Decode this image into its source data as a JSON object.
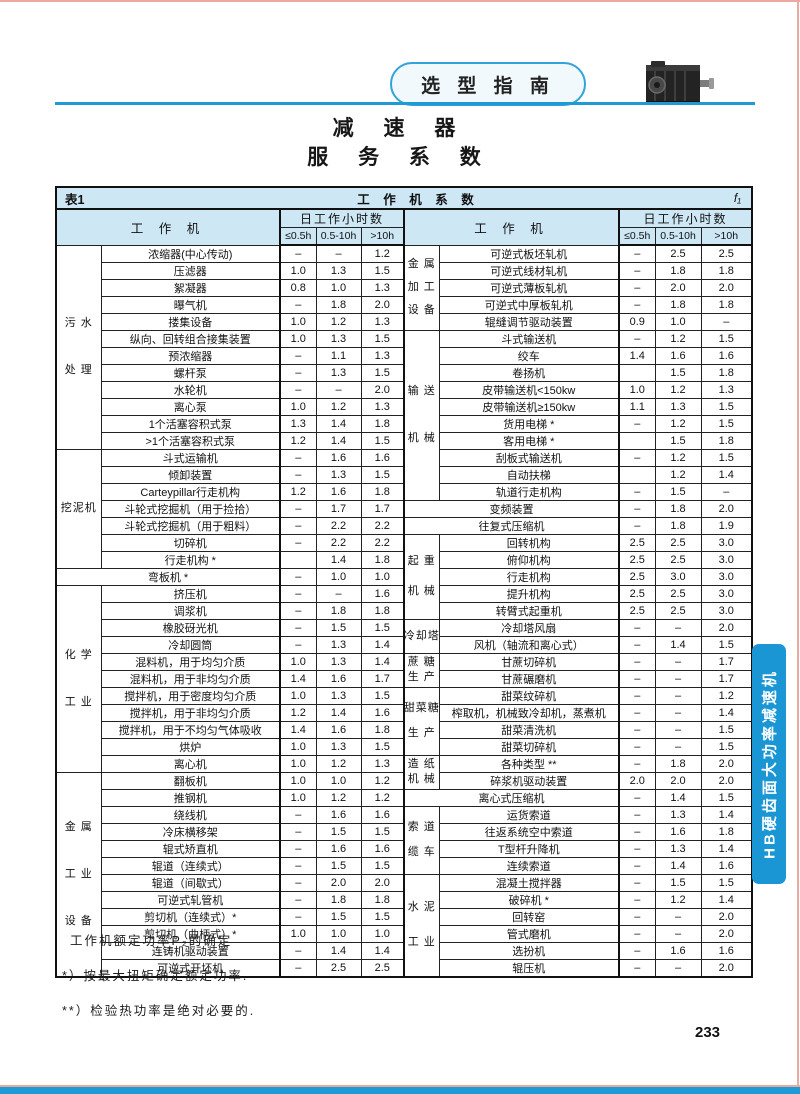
{
  "page": {
    "header_tab": "选 型 指 南",
    "title_line1": "减 速 器",
    "title_line2": "服 务 系 数",
    "side_tab": "HB硬齿面大功率减速机",
    "page_number": "233",
    "accent_blue": "#1d9bd7",
    "table_header_bg": "#cde7f5",
    "edge_color": "#eba9a0"
  },
  "notes": [
    "工作机额定功率P₂的确定",
    "*）按最大扭矩确定额定功率.",
    "**）检验热功率是绝对必要的."
  ],
  "table": {
    "caption_left": "表1",
    "caption_center": "工 作 机 系 数",
    "caption_right": "f₁",
    "col_machine": "工  作  机",
    "col_hours": "日工作小时数",
    "hours_cols": [
      "≤0.5h",
      "0.5-10h",
      ">10h"
    ],
    "left_groups": [
      {
        "label": [
          "污 水",
          "处 理"
        ],
        "rows": [
          {
            "name": "浓缩器(中心传动)",
            "values": [
              "–",
              "–",
              "1.2"
            ]
          },
          {
            "name": "压滤器",
            "values": [
              "1.0",
              "1.3",
              "1.5"
            ]
          },
          {
            "name": "絮凝器",
            "values": [
              "0.8",
              "1.0",
              "1.3"
            ]
          },
          {
            "name": "曝气机",
            "values": [
              "–",
              "1.8",
              "2.0"
            ]
          },
          {
            "name": "搂集设备",
            "values": [
              "1.0",
              "1.2",
              "1.3"
            ]
          },
          {
            "name": "纵向、回转组合接集装置",
            "values": [
              "1.0",
              "1.3",
              "1.5"
            ]
          },
          {
            "name": "预浓缩器",
            "values": [
              "–",
              "1.1",
              "1.3"
            ]
          },
          {
            "name": "螺杆泵",
            "values": [
              "–",
              "1.3",
              "1.5"
            ]
          },
          {
            "name": "水轮机",
            "values": [
              "–",
              "–",
              "2.0"
            ]
          },
          {
            "name": "离心泵",
            "values": [
              "1.0",
              "1.2",
              "1.3"
            ]
          },
          {
            "name": "1个活塞容积式泵",
            "values": [
              "1.3",
              "1.4",
              "1.8"
            ]
          },
          {
            "name": ">1个活塞容积式泵",
            "values": [
              "1.2",
              "1.4",
              "1.5"
            ]
          }
        ]
      },
      {
        "label": [
          "挖泥机"
        ],
        "rows": [
          {
            "name": "斗式运输机",
            "values": [
              "–",
              "1.6",
              "1.6"
            ]
          },
          {
            "name": "倾卸装置",
            "values": [
              "–",
              "1.3",
              "1.5"
            ]
          },
          {
            "name": "Carteypillar行走机构",
            "values": [
              "1.2",
              "1.6",
              "1.8"
            ]
          },
          {
            "name": "斗轮式挖掘机（用于捡拾）",
            "values": [
              "–",
              "1.7",
              "1.7"
            ]
          },
          {
            "name": "斗轮式挖掘机（用于粗料）",
            "values": [
              "–",
              "2.2",
              "2.2"
            ]
          },
          {
            "name": "切碎机",
            "values": [
              "–",
              "2.2",
              "2.2"
            ]
          },
          {
            "name": "行走机构 *",
            "values": [
              "",
              "1.4",
              "1.8"
            ]
          }
        ]
      },
      {
        "label": null,
        "rows": [
          {
            "name": "弯板机 *",
            "values": [
              "–",
              "1.0",
              "1.0"
            ]
          }
        ]
      },
      {
        "label": [
          "化 学",
          "工 业"
        ],
        "rows": [
          {
            "name": "挤压机",
            "values": [
              "–",
              "–",
              "1.6"
            ]
          },
          {
            "name": "调浆机",
            "values": [
              "–",
              "1.8",
              "1.8"
            ]
          },
          {
            "name": "橡胶砑光机",
            "values": [
              "–",
              "1.5",
              "1.5"
            ]
          },
          {
            "name": "冷却圆筒",
            "values": [
              "–",
              "1.3",
              "1.4"
            ]
          },
          {
            "name": "混料机，用于均匀介质",
            "values": [
              "1.0",
              "1.3",
              "1.4"
            ]
          },
          {
            "name": "混料机，用于非均匀介质",
            "values": [
              "1.4",
              "1.6",
              "1.7"
            ]
          },
          {
            "name": "搅拌机，用于密度均匀介质",
            "values": [
              "1.0",
              "1.3",
              "1.5"
            ]
          },
          {
            "name": "搅拌机，用于非均匀介质",
            "values": [
              "1.2",
              "1.4",
              "1.6"
            ]
          },
          {
            "name": "搅拌机，用于不均匀气体吸收",
            "values": [
              "1.4",
              "1.6",
              "1.8"
            ]
          },
          {
            "name": "烘炉",
            "values": [
              "1.0",
              "1.3",
              "1.5"
            ]
          },
          {
            "name": "离心机",
            "values": [
              "1.0",
              "1.2",
              "1.3"
            ]
          }
        ]
      },
      {
        "label": [
          "金 属",
          "工 业",
          "设 备"
        ],
        "rows": [
          {
            "name": "翻板机",
            "values": [
              "1.0",
              "1.0",
              "1.2"
            ]
          },
          {
            "name": "推钢机",
            "values": [
              "1.0",
              "1.2",
              "1.2"
            ]
          },
          {
            "name": "绕线机",
            "values": [
              "–",
              "1.6",
              "1.6"
            ]
          },
          {
            "name": "冷床横移架",
            "values": [
              "–",
              "1.5",
              "1.5"
            ]
          },
          {
            "name": "辊式矫直机",
            "values": [
              "–",
              "1.6",
              "1.6"
            ]
          },
          {
            "name": "辊道（连续式）",
            "values": [
              "–",
              "1.5",
              "1.5"
            ]
          },
          {
            "name": "辊道（间歇式）",
            "values": [
              "–",
              "2.0",
              "2.0"
            ]
          },
          {
            "name": "可逆式轧管机",
            "values": [
              "–",
              "1.8",
              "1.8"
            ]
          },
          {
            "name": "剪切机（连续式）*",
            "values": [
              "–",
              "1.5",
              "1.5"
            ]
          },
          {
            "name": "剪切机（曲柄式）*",
            "values": [
              "1.0",
              "1.0",
              "1.0"
            ]
          },
          {
            "name": "连铸机驱动装置",
            "values": [
              "–",
              "1.4",
              "1.4"
            ]
          },
          {
            "name": "可逆式开坯机",
            "values": [
              "–",
              "2.5",
              "2.5"
            ]
          }
        ]
      }
    ],
    "right_groups": [
      {
        "label": [
          "金 属",
          "加 工",
          "设 备"
        ],
        "rows": [
          {
            "name": "可逆式板坯轧机",
            "values": [
              "–",
              "2.5",
              "2.5"
            ]
          },
          {
            "name": "可逆式线材轧机",
            "values": [
              "–",
              "1.8",
              "1.8"
            ]
          },
          {
            "name": "可逆式薄板轧机",
            "values": [
              "–",
              "2.0",
              "2.0"
            ]
          },
          {
            "name": "可逆式中厚板轧机",
            "values": [
              "–",
              "1.8",
              "1.8"
            ]
          },
          {
            "name": "辊缝调节驱动装置",
            "values": [
              "0.9",
              "1.0",
              "–"
            ]
          }
        ]
      },
      {
        "label": [
          "输 送",
          "机 械"
        ],
        "rows": [
          {
            "name": "斗式输送机",
            "values": [
              "–",
              "1.2",
              "1.5"
            ]
          },
          {
            "name": "绞车",
            "values": [
              "1.4",
              "1.6",
              "1.6"
            ]
          },
          {
            "name": "卷扬机",
            "values": [
              "",
              "1.5",
              "1.8"
            ]
          },
          {
            "name": "皮带输送机<150kw",
            "values": [
              "1.0",
              "1.2",
              "1.3"
            ]
          },
          {
            "name": "皮带输送机≥150kw",
            "values": [
              "1.1",
              "1.3",
              "1.5"
            ]
          },
          {
            "name": "货用电梯 *",
            "values": [
              "–",
              "1.2",
              "1.5"
            ]
          },
          {
            "name": "客用电梯 *",
            "values": [
              "",
              "1.5",
              "1.8"
            ]
          },
          {
            "name": "刮板式输送机",
            "values": [
              "–",
              "1.2",
              "1.5"
            ]
          },
          {
            "name": "自动扶梯",
            "values": [
              "",
              "1.2",
              "1.4"
            ]
          },
          {
            "name": "轨道行走机构",
            "values": [
              "–",
              "1.5",
              "–"
            ]
          }
        ]
      },
      {
        "label": null,
        "rows": [
          {
            "name": "变频装置",
            "values": [
              "–",
              "1.8",
              "2.0"
            ]
          }
        ]
      },
      {
        "label": null,
        "rows": [
          {
            "name": "往复式压缩机",
            "values": [
              "–",
              "1.8",
              "1.9"
            ]
          }
        ]
      },
      {
        "label": [
          "起 重",
          "机 械"
        ],
        "rows": [
          {
            "name": "回转机构",
            "values": [
              "2.5",
              "2.5",
              "3.0"
            ]
          },
          {
            "name": "俯仰机构",
            "values": [
              "2.5",
              "2.5",
              "3.0"
            ]
          },
          {
            "name": "行走机构",
            "values": [
              "2.5",
              "3.0",
              "3.0"
            ]
          },
          {
            "name": "提升机构",
            "values": [
              "2.5",
              "2.5",
              "3.0"
            ]
          },
          {
            "name": "转臂式起重机",
            "values": [
              "2.5",
              "2.5",
              "3.0"
            ]
          }
        ]
      },
      {
        "label": [
          "冷却塔"
        ],
        "rows": [
          {
            "name": "冷却塔风扇",
            "values": [
              "–",
              "–",
              "2.0"
            ]
          },
          {
            "name": "风机（轴流和离心式）",
            "values": [
              "–",
              "1.4",
              "1.5"
            ]
          }
        ]
      },
      {
        "label": [
          "蔗 糖",
          "生 产"
        ],
        "rows": [
          {
            "name": "甘蔗切碎机",
            "values": [
              "–",
              "–",
              "1.7"
            ]
          },
          {
            "name": "甘蔗碾磨机",
            "values": [
              "–",
              "–",
              "1.7"
            ]
          }
        ]
      },
      {
        "label": [
          "甜菜糖",
          "生 产"
        ],
        "rows": [
          {
            "name": "甜菜纹碎机",
            "values": [
              "–",
              "–",
              "1.2"
            ]
          },
          {
            "name": "榨取机，机械致冷却机，蒸煮机",
            "values": [
              "–",
              "–",
              "1.4"
            ]
          },
          {
            "name": "甜菜清洗机",
            "values": [
              "–",
              "–",
              "1.5"
            ]
          },
          {
            "name": "甜菜切碎机",
            "values": [
              "–",
              "–",
              "1.5"
            ]
          }
        ]
      },
      {
        "label": [
          "造 纸",
          "机 械"
        ],
        "rows": [
          {
            "name": "各种类型 **",
            "values": [
              "–",
              "1.8",
              "2.0"
            ]
          },
          {
            "name": "碎浆机驱动装置",
            "values": [
              "2.0",
              "2.0",
              "2.0"
            ]
          }
        ]
      },
      {
        "label": null,
        "rows": [
          {
            "name": "离心式压缩机",
            "values": [
              "–",
              "1.4",
              "1.5"
            ]
          }
        ]
      },
      {
        "label": [
          "索 道",
          "缆 车"
        ],
        "rows": [
          {
            "name": "运货索道",
            "values": [
              "–",
              "1.3",
              "1.4"
            ]
          },
          {
            "name": "往返系统空中索道",
            "values": [
              "–",
              "1.6",
              "1.8"
            ]
          },
          {
            "name": "T型杆升降机",
            "values": [
              "–",
              "1.3",
              "1.4"
            ]
          },
          {
            "name": "连续索道",
            "values": [
              "–",
              "1.4",
              "1.6"
            ]
          }
        ]
      },
      {
        "label": [
          "水 泥",
          "工 业"
        ],
        "rows": [
          {
            "name": "混凝土搅拌器",
            "values": [
              "–",
              "1.5",
              "1.5"
            ]
          },
          {
            "name": "破碎机 *",
            "values": [
              "–",
              "1.2",
              "1.4"
            ]
          },
          {
            "name": "回转窑",
            "values": [
              "–",
              "–",
              "2.0"
            ]
          },
          {
            "name": "管式磨机",
            "values": [
              "–",
              "–",
              "2.0"
            ]
          },
          {
            "name": "选扮机",
            "values": [
              "–",
              "1.6",
              "1.6"
            ]
          },
          {
            "name": "辊压机",
            "values": [
              "–",
              "–",
              "2.0"
            ]
          }
        ]
      }
    ]
  }
}
